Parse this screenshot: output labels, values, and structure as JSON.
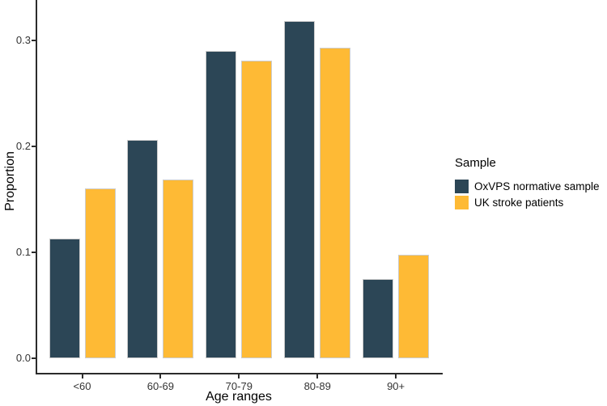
{
  "chart_data": {
    "type": "bar",
    "title": "",
    "categories": [
      "<60",
      "60-69",
      "70-79",
      "80-89",
      "90+"
    ],
    "series": [
      {
        "name": "OxVPS normative sample",
        "color": "#2C4656",
        "values": [
          0.113,
          0.206,
          0.29,
          0.318,
          0.075
        ]
      },
      {
        "name": "UK stroke patients",
        "color": "#FEBA35",
        "values": [
          0.16,
          0.169,
          0.281,
          0.293,
          0.098
        ]
      }
    ],
    "xlabel": "Age ranges",
    "ylabel": "Proportion",
    "ylim": [
      0,
      0.33
    ],
    "yticks": [
      0.0,
      0.1,
      0.2,
      0.3
    ],
    "ytick_labels": [
      "0.0",
      "0.1",
      "0.2",
      "0.3"
    ],
    "legend_title": "Sample",
    "legend_position": "right",
    "grid": false,
    "bar_border_color": "#cccccc",
    "axis_color": "#2b2b2b",
    "tick_label_color": "#333333"
  }
}
